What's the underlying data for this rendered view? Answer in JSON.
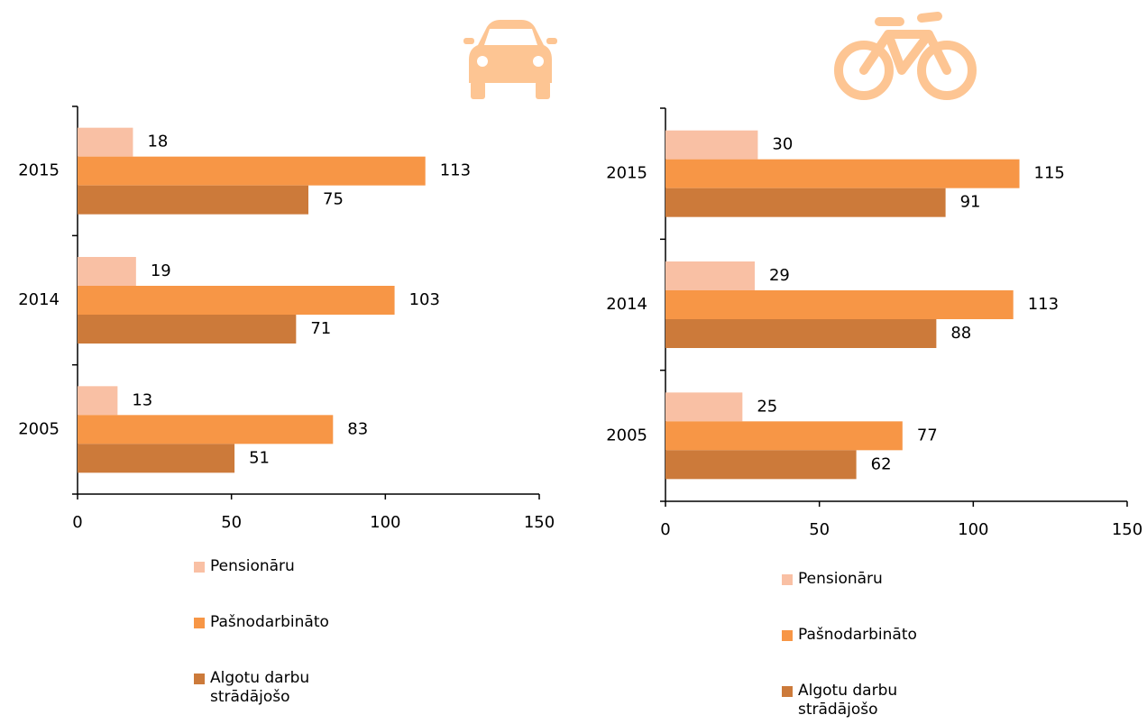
{
  "chart_data": [
    {
      "type": "bar",
      "orientation": "horizontal",
      "categories": [
        "2015",
        "2014",
        "2005"
      ],
      "series": [
        {
          "name": "Pensionāru",
          "color": "#f9c0a4",
          "values": [
            18,
            19,
            13
          ]
        },
        {
          "name": "Pašnodarbināto",
          "color": "#f79646",
          "values": [
            113,
            103,
            83
          ]
        },
        {
          "name": "Algotu darbu strādājošo",
          "color": "#cc7a3a",
          "values": [
            75,
            71,
            51
          ]
        }
      ],
      "xlim": [
        0,
        150
      ],
      "xticks": [
        0,
        50,
        100,
        150
      ]
    },
    {
      "type": "bar",
      "orientation": "horizontal",
      "categories": [
        "2015",
        "2014",
        "2005"
      ],
      "series": [
        {
          "name": "Pensionāru",
          "color": "#f9c0a4",
          "values": [
            30,
            29,
            25
          ]
        },
        {
          "name": "Pašnodarbināto",
          "color": "#f79646",
          "values": [
            115,
            113,
            77
          ]
        },
        {
          "name": "Algotu darbu strādājošo",
          "color": "#cc7a3a",
          "values": [
            91,
            88,
            62
          ]
        }
      ],
      "xlim": [
        0,
        150
      ],
      "xticks": [
        0,
        50,
        100,
        150
      ]
    }
  ]
}
